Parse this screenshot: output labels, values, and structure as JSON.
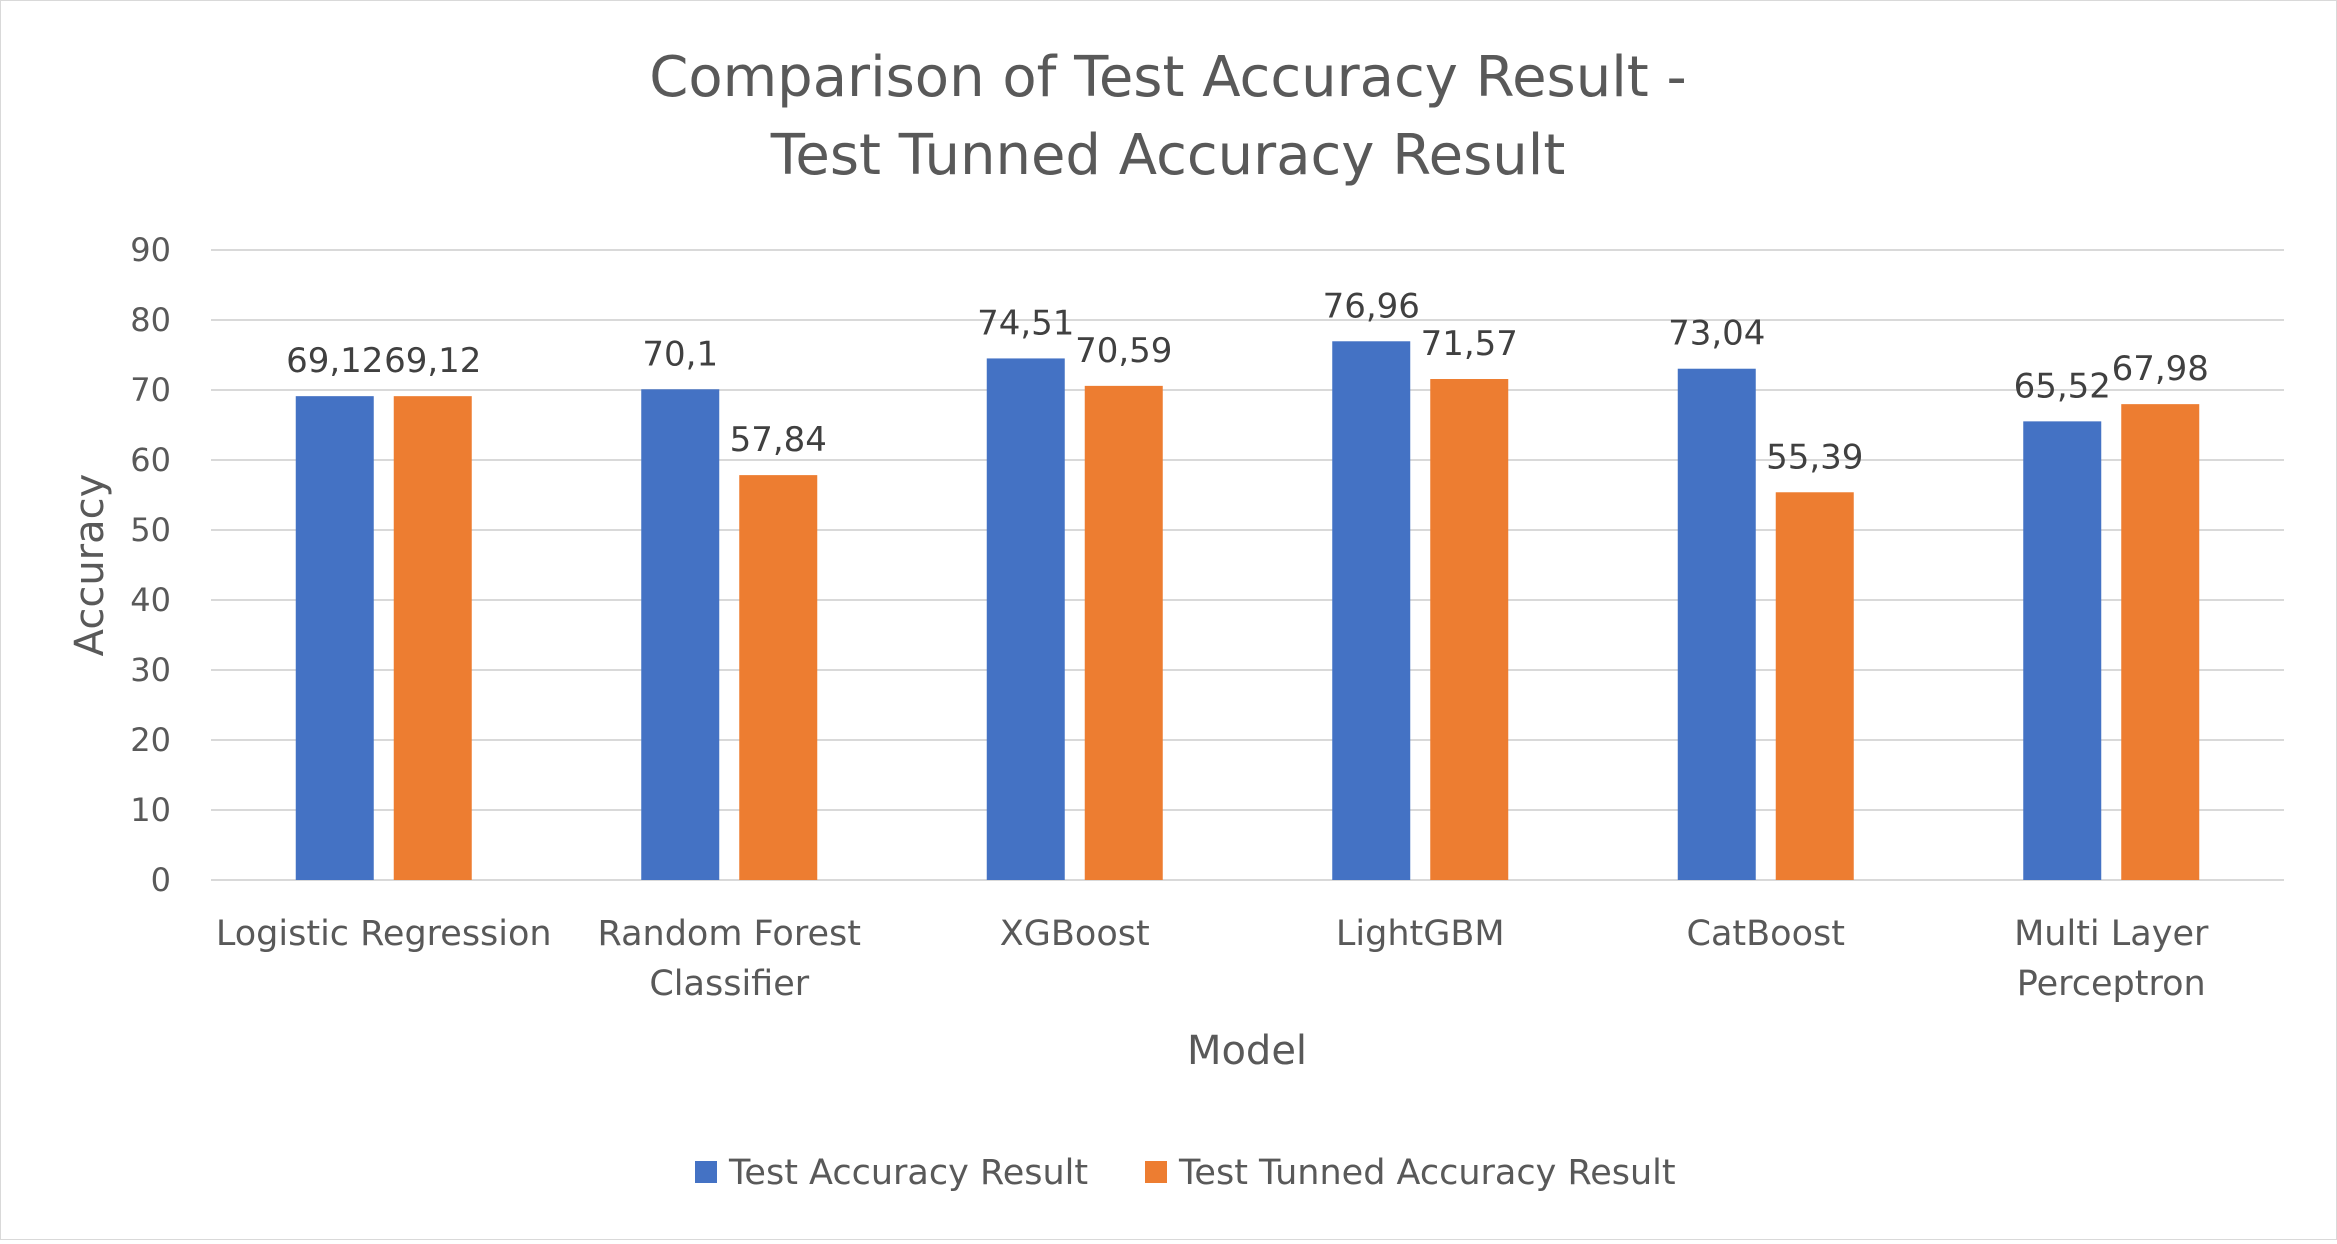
{
  "chart_data": {
    "type": "bar",
    "title": [
      "Comparison of Test Accuracy Result -",
      "Test Tunned Accuracy Result"
    ],
    "xlabel": "Model",
    "ylabel": "Accuracy",
    "ylim": [
      0,
      90
    ],
    "yticks": [
      0,
      10,
      20,
      30,
      40,
      50,
      60,
      70,
      80,
      90
    ],
    "grid": true,
    "legend_position": "bottom",
    "categories": [
      [
        "Logistic Regression"
      ],
      [
        "Random Forest",
        "Classifier"
      ],
      [
        "XGBoost"
      ],
      [
        "LightGBM"
      ],
      [
        "CatBoost"
      ],
      [
        "Multi Layer",
        "Perceptron"
      ]
    ],
    "series": [
      {
        "name": "Test Accuracy Result",
        "color": "#4472C4",
        "values": [
          69.12,
          70.1,
          74.51,
          76.96,
          73.04,
          65.52
        ],
        "labels": [
          "69,12",
          "70,1",
          "74,51",
          "76,96",
          "73,04",
          "65,52"
        ]
      },
      {
        "name": "Test Tunned Accuracy Result",
        "color": "#ED7D31",
        "values": [
          69.12,
          57.84,
          70.59,
          71.57,
          55.39,
          67.98
        ],
        "labels": [
          "69,12",
          "57,84",
          "70,59",
          "71,57",
          "55,39",
          "67,98"
        ]
      }
    ]
  }
}
